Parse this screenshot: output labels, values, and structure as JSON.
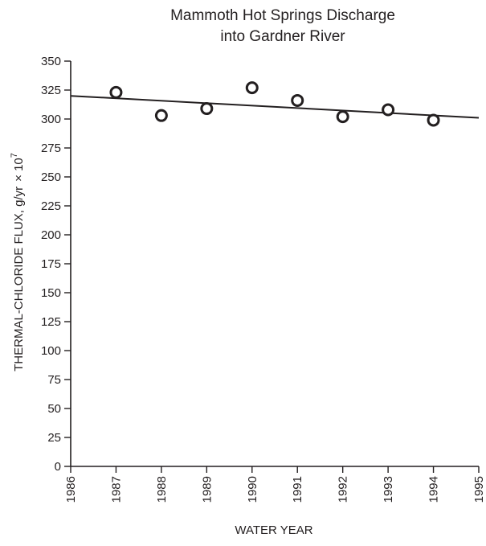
{
  "chart_data": {
    "type": "scatter",
    "title_lines": [
      "Mammoth Hot Springs Discharge",
      "into Gardner River"
    ],
    "xlabel": "WATER YEAR",
    "ylabel_main": "THERMAL-CHLORIDE FLUX, g/yr",
    "ylabel_unit": "× 10",
    "ylabel_exponent": "7",
    "xlim": [
      1986,
      1995
    ],
    "ylim": [
      0,
      350
    ],
    "x_ticks": [
      1986,
      1987,
      1988,
      1989,
      1990,
      1991,
      1992,
      1993,
      1994,
      1995
    ],
    "y_ticks": [
      0,
      25,
      50,
      75,
      100,
      125,
      150,
      175,
      200,
      225,
      250,
      275,
      300,
      325,
      350
    ],
    "grid": false,
    "series": [
      {
        "marker": "open-circle",
        "points": [
          {
            "x": 1987,
            "y": 323
          },
          {
            "x": 1988,
            "y": 303
          },
          {
            "x": 1989,
            "y": 309
          },
          {
            "x": 1990,
            "y": 327
          },
          {
            "x": 1991,
            "y": 316
          },
          {
            "x": 1992,
            "y": 302
          },
          {
            "x": 1993,
            "y": 308
          },
          {
            "x": 1994,
            "y": 299
          }
        ]
      }
    ],
    "trend_line": {
      "x": [
        1986,
        1995
      ],
      "y": [
        320,
        301
      ]
    }
  }
}
